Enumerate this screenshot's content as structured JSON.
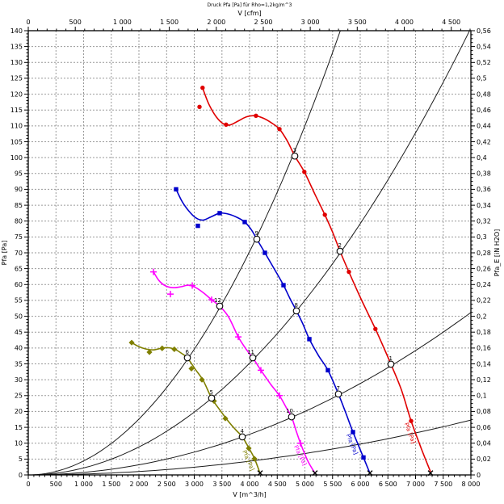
{
  "title": "Druck Pfa [Pa] für Rho=1,2kg/m^3",
  "chart_data": {
    "type": "line",
    "grid": {
      "x_step_m3h": 500,
      "y_step_pa": 5,
      "style": "dashed",
      "color": "#9a9a9a"
    },
    "axes": {
      "top": {
        "label": "V [cfm]",
        "min": 0,
        "max": 4708.6,
        "major_step": 500,
        "minor_step": 100,
        "tick_labels": [
          "0",
          "500",
          "1 000",
          "1 500",
          "2 000",
          "2 500",
          "3 000",
          "3 500",
          "4 000",
          "4 500"
        ]
      },
      "bottom": {
        "label": "V [m^3/h]",
        "min": 0,
        "max": 8000,
        "major_step": 500,
        "minor_step": 100,
        "tick_labels": [
          "0",
          "500",
          "1 000",
          "1 500",
          "2 000",
          "2 500",
          "3 000",
          "3 500",
          "4 000",
          "4 500",
          "5 000",
          "5 500",
          "6 000",
          "6 500",
          "7 000",
          "7 500",
          "8 000"
        ]
      },
      "left": {
        "label": "Pfa [Pa]",
        "min": 0,
        "max": 140,
        "major_step": 5,
        "minor_step": 1,
        "tick_labels": [
          "0",
          "5",
          "10",
          "15",
          "20",
          "25",
          "30",
          "35",
          "40",
          "45",
          "50",
          "55",
          "60",
          "65",
          "70",
          "75",
          "80",
          "85",
          "90",
          "95",
          "100",
          "105",
          "110",
          "115",
          "120",
          "125",
          "130",
          "135",
          "140"
        ]
      },
      "right": {
        "label": "Pfa_E [iN H2O]",
        "min": 0,
        "max": 0.56,
        "major_step": 0.02,
        "minor_step": 0.005,
        "tick_labels": [
          "0",
          "0,02",
          "0,04",
          "0,06",
          "0,08",
          "0,1",
          "0,12",
          "0,14",
          "0,16",
          "0,18",
          "0,2",
          "0,22",
          "0,24",
          "0,26",
          "0,28",
          "0,3",
          "0,32",
          "0,34",
          "0,36",
          "0,38",
          "0,4",
          "0,42",
          "0,44",
          "0,46",
          "0,48",
          "0,5",
          "0,52",
          "0,54",
          "0,56"
        ]
      }
    },
    "series": [
      {
        "id": "fan-red",
        "color": "#e00000",
        "marker": "dot",
        "curve_label": "Pfa [Pa]",
        "end_marker_v": 7270,
        "path": [
          [
            3150,
            122
          ],
          [
            3260,
            117
          ],
          [
            3400,
            112.8
          ],
          [
            3530,
            110.6
          ],
          [
            3650,
            110.3
          ],
          [
            3800,
            111.6
          ],
          [
            3950,
            112.9
          ],
          [
            4100,
            113.2
          ],
          [
            4250,
            112.4
          ],
          [
            4400,
            110.9
          ],
          [
            4540,
            109
          ],
          [
            4680,
            105.3
          ],
          [
            4818,
            100.5
          ],
          [
            4990,
            95.5
          ],
          [
            5180,
            88.5
          ],
          [
            5360,
            82
          ],
          [
            5500,
            76.5
          ],
          [
            5635,
            70.5
          ],
          [
            5800,
            63.8
          ],
          [
            6000,
            56
          ],
          [
            6275,
            46
          ],
          [
            6420,
            40.3
          ],
          [
            6555,
            34.9
          ],
          [
            6740,
            27
          ],
          [
            6920,
            17
          ],
          [
            7100,
            8.5
          ],
          [
            7270,
            1
          ]
        ],
        "markers": [
          [
            3150,
            122
          ],
          [
            3095,
            116
          ],
          [
            3575,
            110.4
          ],
          [
            4115,
            113.2
          ],
          [
            4540,
            109
          ],
          [
            4990,
            95.5
          ],
          [
            5360,
            82
          ],
          [
            5795,
            64
          ],
          [
            6275,
            46
          ],
          [
            6920,
            17
          ]
        ]
      },
      {
        "id": "fan-blue",
        "color": "#0000cc",
        "marker": "square",
        "curve_label": "Pfa [Pa]",
        "end_marker_v": 6175,
        "path": [
          [
            2672,
            90
          ],
          [
            2780,
            86.2
          ],
          [
            2900,
            83.2
          ],
          [
            3030,
            81
          ],
          [
            3160,
            80.3
          ],
          [
            3300,
            81.3
          ],
          [
            3460,
            82.5
          ],
          [
            3620,
            82.2
          ],
          [
            3770,
            81.2
          ],
          [
            3912,
            79.7
          ],
          [
            4030,
            77.3
          ],
          [
            4131,
            74.3
          ],
          [
            4277,
            70
          ],
          [
            4450,
            64.8
          ],
          [
            4613,
            59.8
          ],
          [
            4730,
            55.6
          ],
          [
            4847,
            51.7
          ],
          [
            4960,
            47.7
          ],
          [
            5080,
            42.8
          ],
          [
            5250,
            37.5
          ],
          [
            5416,
            33
          ],
          [
            5606,
            25.5
          ],
          [
            5740,
            19.5
          ],
          [
            5869,
            13.5
          ],
          [
            6058,
            5.5
          ],
          [
            6175,
            0.5
          ]
        ],
        "markers": [
          [
            2672,
            90
          ],
          [
            3066,
            78.5
          ],
          [
            3460,
            82.5
          ],
          [
            3912,
            79.7
          ],
          [
            4277,
            70
          ],
          [
            4613,
            59.8
          ],
          [
            5080,
            42.8
          ],
          [
            5416,
            33
          ],
          [
            5869,
            13.5
          ],
          [
            6058,
            5.5
          ]
        ]
      },
      {
        "id": "fan-magenta",
        "color": "#ff00ff",
        "marker": "plus",
        "curve_label": "Pfa [Pa]",
        "end_marker_v": 5182,
        "path": [
          [
            2263,
            64
          ],
          [
            2360,
            61.3
          ],
          [
            2480,
            59.6
          ],
          [
            2620,
            59
          ],
          [
            2760,
            59.3
          ],
          [
            2900,
            59.8
          ],
          [
            3040,
            58.9
          ],
          [
            3180,
            57.2
          ],
          [
            3314,
            55.2
          ],
          [
            3460,
            53.2
          ],
          [
            3620,
            49.8
          ],
          [
            3796,
            43.5
          ],
          [
            3950,
            39.3
          ],
          [
            4058,
            36.9
          ],
          [
            4204,
            33
          ],
          [
            4380,
            28.6
          ],
          [
            4540,
            25
          ],
          [
            4660,
            21.3
          ],
          [
            4759,
            18.3
          ],
          [
            4840,
            14
          ],
          [
            4920,
            10
          ],
          [
            5050,
            4.5
          ],
          [
            5182,
            0.5
          ]
        ],
        "markers": [
          [
            2263,
            64
          ],
          [
            2569,
            57
          ],
          [
            2964,
            59.7
          ],
          [
            3314,
            55.2
          ],
          [
            3796,
            43.5
          ],
          [
            4204,
            33
          ],
          [
            4540,
            25
          ],
          [
            4920,
            10
          ]
        ]
      },
      {
        "id": "fan-olive",
        "color": "#7f7f00",
        "marker": "diamond",
        "curve_label": "Pfa [Pa]",
        "end_marker_v": 4190,
        "path": [
          [
            1869,
            41.7
          ],
          [
            1990,
            40.5
          ],
          [
            2120,
            39.7
          ],
          [
            2260,
            39.4
          ],
          [
            2400,
            39.9
          ],
          [
            2530,
            40.1
          ],
          [
            2660,
            39.5
          ],
          [
            2780,
            38.2
          ],
          [
            2876,
            36.9
          ],
          [
            3010,
            33.5
          ],
          [
            3160,
            29.8
          ],
          [
            3314,
            24.2
          ],
          [
            3470,
            20.3
          ],
          [
            3620,
            16.8
          ],
          [
            3750,
            14.2
          ],
          [
            3869,
            12
          ],
          [
            3990,
            8.4
          ],
          [
            4090,
            5.1
          ],
          [
            4190,
            0.5
          ]
        ],
        "markers": [
          [
            1869,
            41.7
          ],
          [
            2190,
            38.7
          ],
          [
            2420,
            39.9
          ],
          [
            2640,
            39.6
          ],
          [
            2949,
            33.5
          ],
          [
            3139,
            30
          ],
          [
            3358,
            23.3
          ],
          [
            3562,
            17.8
          ],
          [
            3985,
            8.4
          ],
          [
            4088,
            5.1
          ]
        ]
      }
    ],
    "system_curves": [
      {
        "k": 4.4e-06,
        "v_end": 5640
      },
      {
        "k": 2.2e-06,
        "v_end": 7980
      },
      {
        "k": 8e-07,
        "v_end": 8000
      },
      {
        "k": 2.7e-07,
        "v_end": 8000
      }
    ],
    "operating_points": [
      {
        "id": "1",
        "v": 6555,
        "pa": 34.9
      },
      {
        "id": "2",
        "v": 5635,
        "pa": 70.5
      },
      {
        "id": "3",
        "v": 4818,
        "pa": 100.5
      },
      {
        "id": "4",
        "v": 3869,
        "pa": 12
      },
      {
        "id": "5",
        "v": 3314,
        "pa": 24.2
      },
      {
        "id": "6",
        "v": 2876,
        "pa": 36.9
      },
      {
        "id": "7",
        "v": 5606,
        "pa": 25.5
      },
      {
        "id": "8",
        "v": 4847,
        "pa": 51.7
      },
      {
        "id": "9",
        "v": 4131,
        "pa": 74.3
      },
      {
        "id": "10",
        "v": 4759,
        "pa": 18.3
      },
      {
        "id": "11",
        "v": 4058,
        "pa": 36.9
      },
      {
        "id": "12",
        "v": 3460,
        "pa": 53.2
      }
    ]
  }
}
